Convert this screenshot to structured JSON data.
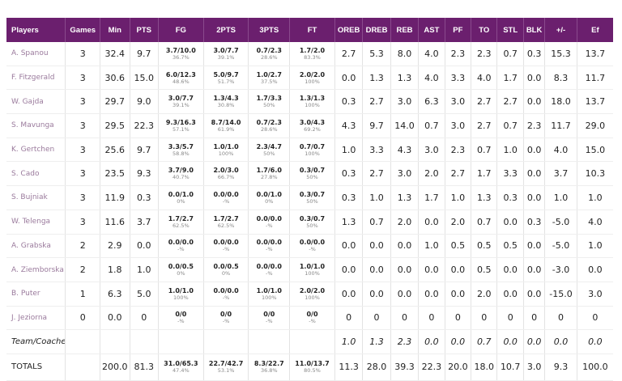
{
  "columns": [
    "Players",
    "Games",
    "Min",
    "PTS",
    "FG",
    "2PTS",
    "3PTS",
    "FT",
    "OREB",
    "DREB",
    "REB",
    "AST",
    "PF",
    "TO",
    "STL",
    "BLK",
    "+/-",
    "Ef"
  ],
  "players": [
    {
      "name": "A. Spanou",
      "games": "3",
      "min": "32.4",
      "pts": "9.7",
      "fg": "3.7/10.0",
      "fg_pct": "36.7%",
      "p2": "3.0/7.7",
      "p2_pct": "39.1%",
      "p3": "0.7/2.3",
      "p3_pct": "28.6%",
      "ft": "1.7/2.0",
      "ft_pct": "83.3%",
      "oreb": "2.7",
      "dreb": "5.3",
      "reb": "8.0",
      "ast": "4.0",
      "pf": "2.3",
      "to": "2.3",
      "stl": "0.7",
      "blk": "0.3",
      "pm": "15.3",
      "ef": "13.7"
    },
    {
      "name": "F. Fitzgerald",
      "games": "3",
      "min": "30.6",
      "pts": "15.0",
      "fg": "6.0/12.3",
      "fg_pct": "48.6%",
      "p2": "5.0/9.7",
      "p2_pct": "51.7%",
      "p3": "1.0/2.7",
      "p3_pct": "37.5%",
      "ft": "2.0/2.0",
      "ft_pct": "100%",
      "oreb": "0.0",
      "dreb": "1.3",
      "reb": "1.3",
      "ast": "4.0",
      "pf": "3.3",
      "to": "4.0",
      "stl": "1.7",
      "blk": "0.0",
      "pm": "8.3",
      "ef": "11.7"
    },
    {
      "name": "W. Gajda",
      "games": "3",
      "min": "29.7",
      "pts": "9.0",
      "fg": "3.0/7.7",
      "fg_pct": "39.1%",
      "p2": "1.3/4.3",
      "p2_pct": "30.8%",
      "p3": "1.7/3.3",
      "p3_pct": "50%",
      "ft": "1.3/1.3",
      "ft_pct": "100%",
      "oreb": "0.3",
      "dreb": "2.7",
      "reb": "3.0",
      "ast": "6.3",
      "pf": "3.0",
      "to": "2.7",
      "stl": "2.7",
      "blk": "0.0",
      "pm": "18.0",
      "ef": "13.7"
    },
    {
      "name": "S. Mavunga",
      "games": "3",
      "min": "29.5",
      "pts": "22.3",
      "fg": "9.3/16.3",
      "fg_pct": "57.1%",
      "p2": "8.7/14.0",
      "p2_pct": "61.9%",
      "p3": "0.7/2.3",
      "p3_pct": "28.6%",
      "ft": "3.0/4.3",
      "ft_pct": "69.2%",
      "oreb": "4.3",
      "dreb": "9.7",
      "reb": "14.0",
      "ast": "0.7",
      "pf": "3.0",
      "to": "2.7",
      "stl": "0.7",
      "blk": "2.3",
      "pm": "11.7",
      "ef": "29.0"
    },
    {
      "name": "K. Gertchen",
      "games": "3",
      "min": "25.6",
      "pts": "9.7",
      "fg": "3.3/5.7",
      "fg_pct": "58.8%",
      "p2": "1.0/1.0",
      "p2_pct": "100%",
      "p3": "2.3/4.7",
      "p3_pct": "50%",
      "ft": "0.7/0.7",
      "ft_pct": "100%",
      "oreb": "1.0",
      "dreb": "3.3",
      "reb": "4.3",
      "ast": "3.0",
      "pf": "2.3",
      "to": "0.7",
      "stl": "1.0",
      "blk": "0.0",
      "pm": "4.0",
      "ef": "15.0"
    },
    {
      "name": "S. Cado",
      "games": "3",
      "min": "23.5",
      "pts": "9.3",
      "fg": "3.7/9.0",
      "fg_pct": "40.7%",
      "p2": "2.0/3.0",
      "p2_pct": "66.7%",
      "p3": "1.7/6.0",
      "p3_pct": "27.8%",
      "ft": "0.3/0.7",
      "ft_pct": "50%",
      "oreb": "0.3",
      "dreb": "2.7",
      "reb": "3.0",
      "ast": "2.0",
      "pf": "2.7",
      "to": "1.7",
      "stl": "3.3",
      "blk": "0.0",
      "pm": "3.7",
      "ef": "10.3"
    },
    {
      "name": "S. Bujniak",
      "games": "3",
      "min": "11.9",
      "pts": "0.3",
      "fg": "0.0/1.0",
      "fg_pct": "0%",
      "p2": "0.0/0.0",
      "p2_pct": "-%",
      "p3": "0.0/1.0",
      "p3_pct": "0%",
      "ft": "0.3/0.7",
      "ft_pct": "50%",
      "oreb": "0.3",
      "dreb": "1.0",
      "reb": "1.3",
      "ast": "1.7",
      "pf": "1.0",
      "to": "1.3",
      "stl": "0.3",
      "blk": "0.0",
      "pm": "1.0",
      "ef": "1.0"
    },
    {
      "name": "W. Telenga",
      "games": "3",
      "min": "11.6",
      "pts": "3.7",
      "fg": "1.7/2.7",
      "fg_pct": "62.5%",
      "p2": "1.7/2.7",
      "p2_pct": "62.5%",
      "p3": "0.0/0.0",
      "p3_pct": "-%",
      "ft": "0.3/0.7",
      "ft_pct": "50%",
      "oreb": "1.3",
      "dreb": "0.7",
      "reb": "2.0",
      "ast": "0.0",
      "pf": "2.0",
      "to": "0.7",
      "stl": "0.0",
      "blk": "0.3",
      "pm": "-5.0",
      "ef": "4.0"
    },
    {
      "name": "A. Grabska",
      "games": "2",
      "min": "2.9",
      "pts": "0.0",
      "fg": "0.0/0.0",
      "fg_pct": "-%",
      "p2": "0.0/0.0",
      "p2_pct": "-%",
      "p3": "0.0/0.0",
      "p3_pct": "-%",
      "ft": "0.0/0.0",
      "ft_pct": "-%",
      "oreb": "0.0",
      "dreb": "0.0",
      "reb": "0.0",
      "ast": "1.0",
      "pf": "0.5",
      "to": "0.5",
      "stl": "0.5",
      "blk": "0.0",
      "pm": "-5.0",
      "ef": "1.0"
    },
    {
      "name": "A. Ziemborska",
      "games": "2",
      "min": "1.8",
      "pts": "1.0",
      "fg": "0.0/0.5",
      "fg_pct": "0%",
      "p2": "0.0/0.5",
      "p2_pct": "0%",
      "p3": "0.0/0.0",
      "p3_pct": "-%",
      "ft": "1.0/1.0",
      "ft_pct": "100%",
      "oreb": "0.0",
      "dreb": "0.0",
      "reb": "0.0",
      "ast": "0.0",
      "pf": "0.0",
      "to": "0.5",
      "stl": "0.0",
      "blk": "0.0",
      "pm": "-3.0",
      "ef": "0.0"
    },
    {
      "name": "B. Puter",
      "games": "1",
      "min": "6.3",
      "pts": "5.0",
      "fg": "1.0/1.0",
      "fg_pct": "100%",
      "p2": "0.0/0.0",
      "p2_pct": "-%",
      "p3": "1.0/1.0",
      "p3_pct": "100%",
      "ft": "2.0/2.0",
      "ft_pct": "100%",
      "oreb": "0.0",
      "dreb": "0.0",
      "reb": "0.0",
      "ast": "0.0",
      "pf": "0.0",
      "to": "2.0",
      "stl": "0.0",
      "blk": "0.0",
      "pm": "-15.0",
      "ef": "3.0"
    },
    {
      "name": "J. Jeziorna",
      "games": "0",
      "min": "0.0",
      "pts": "0",
      "fg": "0/0",
      "fg_pct": "-%",
      "p2": "0/0",
      "p2_pct": "-%",
      "p3": "0/0",
      "p3_pct": "-%",
      "ft": "0/0",
      "ft_pct": "-%",
      "oreb": "0",
      "dreb": "0",
      "reb": "0",
      "ast": "0",
      "pf": "0",
      "to": "0",
      "stl": "0",
      "blk": "0",
      "pm": "0",
      "ef": "0"
    }
  ],
  "team": {
    "name": "Team/Coaches",
    "oreb": "1.0",
    "dreb": "1.3",
    "reb": "2.3",
    "ast": "0.0",
    "pf": "0.0",
    "to": "0.7",
    "stl": "0.0",
    "blk": "0.0",
    "pm": "0.0",
    "ef": "0.0"
  },
  "totals": {
    "name": "TOTALS",
    "min": "200.0",
    "pts": "81.3",
    "fg": "31.0/65.3",
    "fg_pct": "47.4%",
    "p2": "22.7/42.7",
    "p2_pct": "53.1%",
    "p3": "8.3/22.7",
    "p3_pct": "36.8%",
    "ft": "11.0/13.7",
    "ft_pct": "80.5%",
    "oreb": "11.3",
    "dreb": "28.0",
    "reb": "39.3",
    "ast": "22.3",
    "pf": "20.0",
    "to": "18.0",
    "stl": "10.7",
    "blk": "3.0",
    "pm": "9.3",
    "ef": "100.0"
  }
}
